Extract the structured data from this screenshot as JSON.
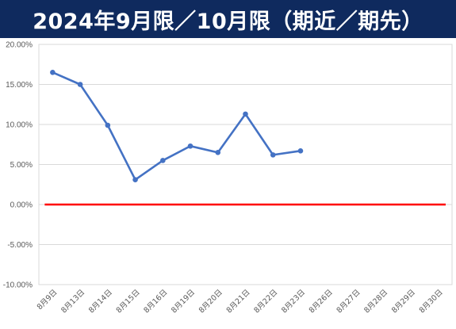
{
  "header": {
    "title": "2024年9月限／10月限（期近／期先）"
  },
  "chart_data": {
    "type": "line",
    "title": "2024年9月限／10月限（期近／期先）",
    "xlabel": "",
    "ylabel": "",
    "categories": [
      "8月9日",
      "8月13日",
      "8月14日",
      "8月15日",
      "8月16日",
      "8月19日",
      "8月20日",
      "8月21日",
      "8月22日",
      "8月23日",
      "8月26日",
      "8月27日",
      "8月28日",
      "8月29日",
      "8月30日"
    ],
    "y_ticks": [
      "20.00%",
      "15.00%",
      "10.00%",
      "5.00%",
      "0.00%",
      "-5.00%",
      "-10.00%"
    ],
    "ylim": [
      -10,
      20
    ],
    "grid": true,
    "legend": "none",
    "series": [
      {
        "color": "#4472c4",
        "values": [
          16.5,
          15.0,
          9.9,
          3.1,
          5.5,
          7.3,
          6.5,
          11.3,
          6.2,
          6.7,
          null,
          null,
          null,
          null,
          null
        ]
      }
    ],
    "reference_line": {
      "value": 0,
      "color": "#ff0000"
    }
  }
}
